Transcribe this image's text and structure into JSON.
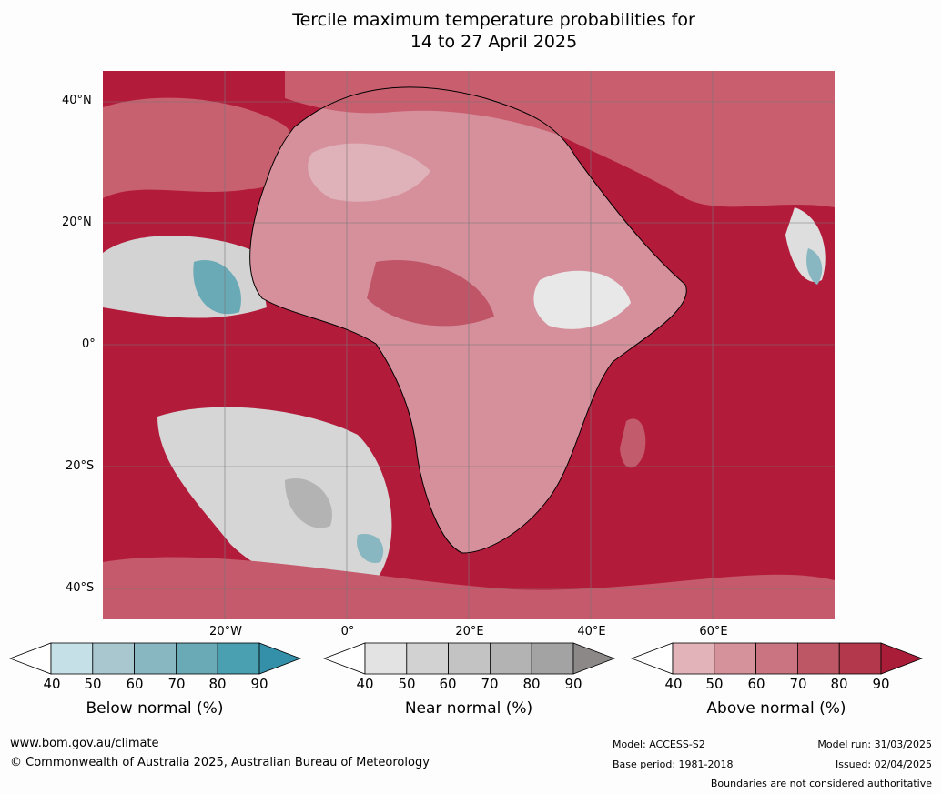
{
  "title_line1": "Tercile maximum temperature probabilities for",
  "title_line2": "14 to 27 April 2025",
  "lat_labels": [
    "40°N",
    "20°N",
    "0°",
    "20°S",
    "40°S"
  ],
  "lon_labels": [
    "20°W",
    "0°",
    "20°E",
    "40°E",
    "60°E"
  ],
  "colorbars": [
    {
      "label": "Below normal (%)",
      "ticks": [
        "40",
        "50",
        "60",
        "70",
        "80",
        "90"
      ],
      "colors": [
        "#ffffff",
        "#c6e0e7",
        "#a8c7cf",
        "#88b7c2",
        "#6aaab6",
        "#4a9fb0",
        "#3390a8"
      ]
    },
    {
      "label": "Near normal (%)",
      "ticks": [
        "40",
        "50",
        "60",
        "70",
        "80",
        "90"
      ],
      "colors": [
        "#ffffff",
        "#e3e3e3",
        "#d2d2d2",
        "#c3c3c3",
        "#b3b3b3",
        "#a3a3a3",
        "#8c8888"
      ]
    },
    {
      "label": "Above normal (%)",
      "ticks": [
        "40",
        "50",
        "60",
        "70",
        "80",
        "90"
      ],
      "colors": [
        "#ffffff",
        "#e2b3b9",
        "#d5929b",
        "#c97480",
        "#bd5766",
        "#b3384b",
        "#a91d38"
      ]
    }
  ],
  "footer": {
    "website": "www.bom.gov.au/climate",
    "copyright": "© Commonwealth of Australia 2025, Australian Bureau of Meteorology",
    "model": "Model: ACCESS-S2",
    "base_period": "Base period: 1981-2018",
    "model_run": "Model run: 31/03/2025",
    "issued": "Issued: 02/04/2025",
    "disclaimer": "Boundaries are not considered authoritative"
  },
  "map_colors": {
    "ocean": "#b51c3a",
    "land_light": "#d58a97",
    "land_mid": "#c75d6c",
    "near": "#d2d2d2",
    "below": "#5fa9b8"
  }
}
